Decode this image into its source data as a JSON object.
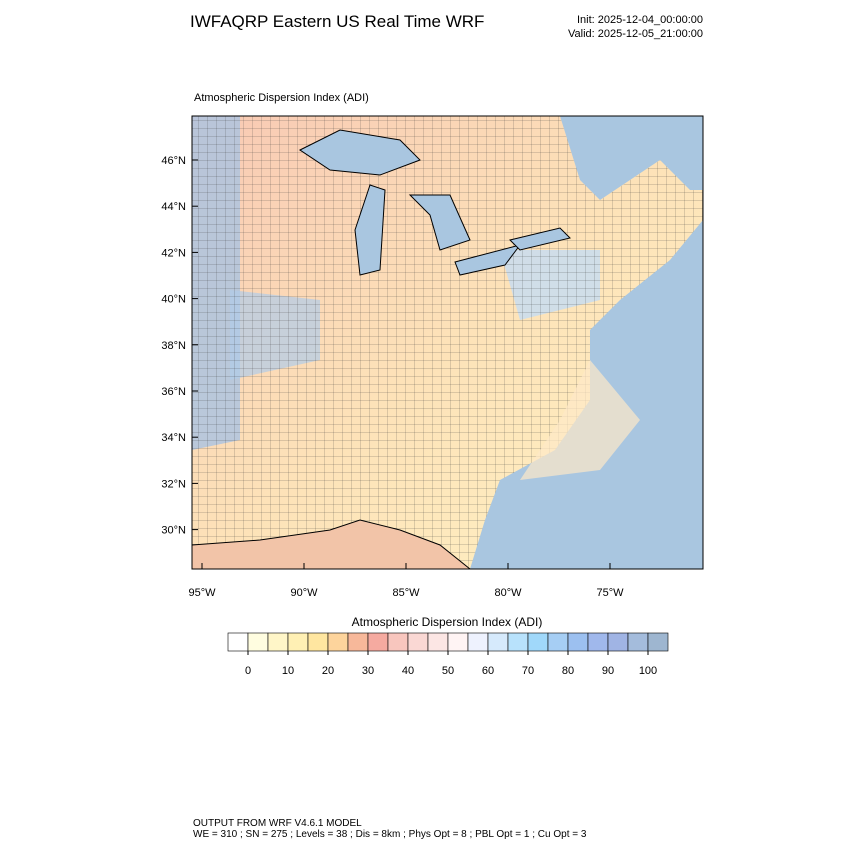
{
  "header": {
    "title": "IWFAQRP Eastern US Real Time WRF",
    "init": "Init: 2025-12-04_00:00:00",
    "valid": "Valid: 2025-12-05_21:00:00"
  },
  "map": {
    "subtitle": "Atmospheric Dispersion Index   (ADI)",
    "lat_labels": [
      "46°N",
      "44°N",
      "42°N",
      "40°N",
      "38°N",
      "36°N",
      "34°N",
      "32°N",
      "30°N"
    ],
    "lon_labels": [
      "95°W",
      "90°W",
      "85°W",
      "80°W",
      "75°W"
    ]
  },
  "colorbar": {
    "title": "Atmospheric Dispersion Index  (ADI)",
    "colors": [
      "#ffffff",
      "#fffde0",
      "#fff6c8",
      "#fff0b4",
      "#ffe6a0",
      "#fdd49c",
      "#f7b89a",
      "#f5aaa0",
      "#f8c6be",
      "#fad8d4",
      "#fce6e4",
      "#fff4f4",
      "#eef2fe",
      "#d6eafc",
      "#b8e2fc",
      "#a0d8fa",
      "#a6cef4",
      "#9cc0f0",
      "#a0b8ec",
      "#a0b4e4",
      "#a4bcdc",
      "#9eb6d0"
    ],
    "ticks": [
      0,
      10,
      20,
      30,
      40,
      50,
      60,
      70,
      80,
      90,
      100
    ],
    "lim": [
      -5,
      105
    ]
  },
  "footer": {
    "line1": "OUTPUT FROM WRF V4.6.1 MODEL",
    "line2": "WE = 310 ; SN = 275 ; Levels = 38 ; Dis = 8km ; Phys Opt = 8 ; PBL Opt = 1 ; Cu Opt = 3"
  }
}
